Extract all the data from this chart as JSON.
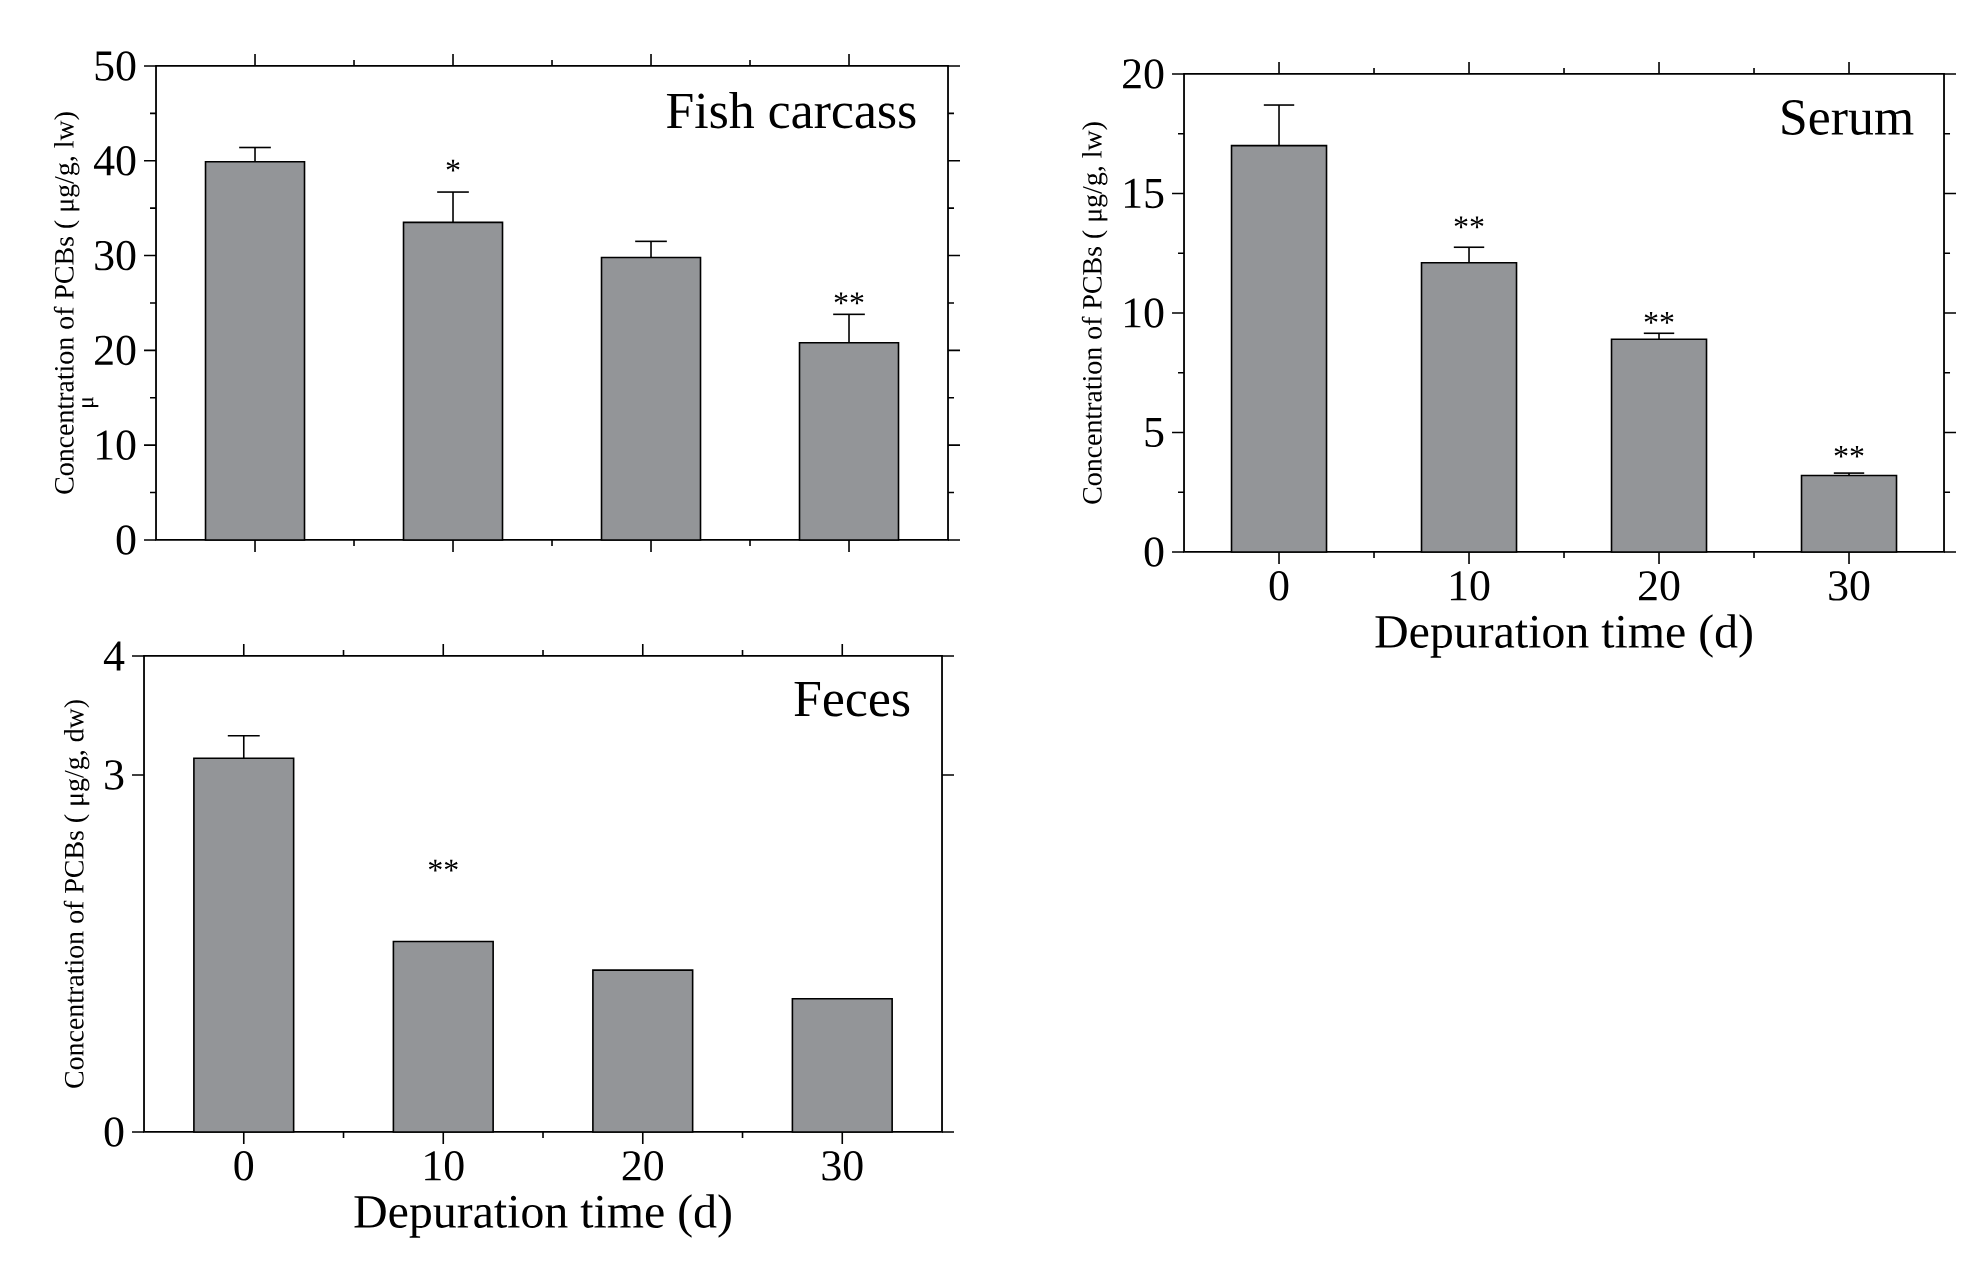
{
  "chart_data": [
    {
      "type": "bar",
      "title": "Fish carcass",
      "ylabel": "Concentration of PCBs ( μg/g, lw)",
      "categories": [
        "0",
        "10",
        "20",
        "30"
      ],
      "values": [
        39.9,
        33.5,
        29.8,
        20.8
      ],
      "errors": [
        [
          39.9,
          41.4
        ],
        [
          33.5,
          36.7
        ],
        [
          29.8,
          31.5
        ],
        [
          20.8,
          23.8
        ]
      ],
      "color": "#939598",
      "ylim": [
        0,
        50
      ],
      "yticks": [
        0,
        10,
        20,
        30,
        40,
        50
      ],
      "tick_labels": "y",
      "annotations": [
        "*",
        "**",
        "μ"
      ]
    },
    {
      "type": "bar",
      "title": "Serum",
      "ylabel": "Concentration of PCBs ( μg/g, lw)",
      "xlabel": "Depuration time (d)",
      "categories": [
        "0",
        "10",
        "20",
        "30"
      ],
      "values": [
        17.0,
        12.1,
        8.9,
        3.2
      ],
      "errors": [
        [
          17.0,
          18.7
        ],
        [
          12.1,
          12.75
        ],
        [
          8.9,
          9.15
        ],
        [
          3.2,
          3.3
        ]
      ],
      "color": "#939598",
      "ylim": [
        0,
        20
      ],
      "yticks": [
        0,
        5,
        10,
        15,
        20
      ],
      "annotations": [
        "**",
        "**",
        "**"
      ]
    },
    {
      "type": "bar",
      "title": "Feces",
      "ylabel": "Concentration of PCBs ( μg/g, dw)",
      "xlabel": "Depuration time (d)",
      "categories": [
        "0",
        "10",
        "20",
        "30"
      ],
      "values": [
        3.14,
        1.6,
        1.36,
        1.12
      ],
      "errors": [
        [
          3.14,
          3.33
        ],
        null,
        null,
        null
      ],
      "color": "#939598",
      "ylim": [
        0,
        4
      ],
      "yticks": [
        0,
        3,
        4
      ],
      "annotations": [
        "**"
      ]
    }
  ]
}
